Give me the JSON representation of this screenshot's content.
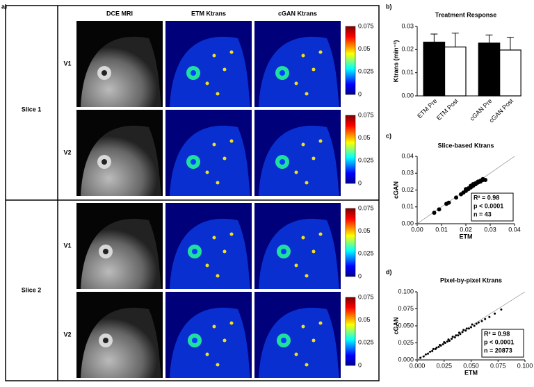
{
  "panel_a": {
    "label": "a)",
    "columns": [
      "DCE MRI",
      "ETM Ktrans",
      "cGAN Ktrans"
    ],
    "rows": [
      {
        "slice": "Slice 1",
        "visits": [
          "V1",
          "V2"
        ]
      },
      {
        "slice": "Slice 2",
        "visits": [
          "V1",
          "V2"
        ]
      }
    ],
    "colorbar_ticks": [
      0.075,
      0.05,
      0.025,
      0
    ]
  },
  "chart_data": [
    {
      "type": "bar",
      "panel_label": "b)",
      "title": "Treatment Response",
      "y_label": "Ktrans (min⁻¹)",
      "categories": [
        "ETM Pre",
        "ETM Post",
        "cGAN Pre",
        "cGAN Post"
      ],
      "values": [
        0.0232,
        0.0211,
        0.0228,
        0.0198
      ],
      "errors": [
        0.0035,
        0.006,
        0.0035,
        0.0055
      ],
      "colors": [
        "#000000",
        "#ffffff",
        "#000000",
        "#ffffff"
      ],
      "ylim": [
        0,
        0.03
      ],
      "yticks": [
        {
          "value": 0,
          "label": "0.00"
        },
        {
          "value": 0.01,
          "label": "0.01"
        },
        {
          "value": 0.02,
          "label": "0.02"
        },
        {
          "value": 0.03,
          "label": "0.03"
        }
      ]
    },
    {
      "type": "scatter",
      "panel_label": "c)",
      "title": "Slice-based Ktrans",
      "x_label": "ETM",
      "y_label": "cGAN",
      "x": [
        0.007,
        0.009,
        0.012,
        0.013,
        0.016,
        0.018,
        0.019,
        0.02,
        0.02,
        0.021,
        0.021,
        0.022,
        0.022,
        0.022,
        0.023,
        0.023,
        0.023,
        0.024,
        0.024,
        0.024,
        0.025,
        0.025,
        0.025,
        0.026,
        0.026,
        0.027,
        0.027,
        0.028
      ],
      "values": [
        0.0065,
        0.0085,
        0.0118,
        0.0125,
        0.0155,
        0.0175,
        0.0185,
        0.0195,
        0.0205,
        0.0205,
        0.021,
        0.0215,
        0.022,
        0.0225,
        0.0225,
        0.023,
        0.0235,
        0.0235,
        0.024,
        0.0235,
        0.0245,
        0.025,
        0.0245,
        0.0255,
        0.025,
        0.026,
        0.0265,
        0.026
      ],
      "color": "#000000",
      "marker_size": 3,
      "xlim": [
        0,
        0.04
      ],
      "ylim": [
        0,
        0.04
      ],
      "xticks": [
        {
          "value": 0,
          "label": "0.00"
        },
        {
          "value": 0.01,
          "label": "0.01"
        },
        {
          "value": 0.02,
          "label": "0.02"
        },
        {
          "value": 0.03,
          "label": "0.03"
        },
        {
          "value": 0.04,
          "label": "0.04"
        }
      ],
      "yticks": [
        {
          "value": 0,
          "label": "0.00"
        },
        {
          "value": 0.01,
          "label": "0.01"
        },
        {
          "value": 0.02,
          "label": "0.02"
        },
        {
          "value": 0.03,
          "label": "0.03"
        },
        {
          "value": 0.04,
          "label": "0.04"
        }
      ],
      "annotations": [
        "R² = 0.98",
        "p < 0.0001",
        "n = 43"
      ]
    },
    {
      "type": "scatter",
      "panel_label": "d)",
      "title": "Pixel-by-pixel Ktrans",
      "x_label": "ETM",
      "y_label": "cGAN",
      "x": [
        0.003,
        0.006,
        0.008,
        0.01,
        0.012,
        0.014,
        0.015,
        0.017,
        0.018,
        0.02,
        0.021,
        0.022,
        0.024,
        0.025,
        0.026,
        0.028,
        0.029,
        0.03,
        0.032,
        0.033,
        0.035,
        0.036,
        0.038,
        0.039,
        0.04,
        0.042,
        0.043,
        0.045,
        0.046,
        0.048,
        0.05,
        0.051,
        0.053,
        0.055,
        0.057,
        0.06,
        0.063,
        0.067,
        0.072,
        0.078
      ],
      "values": [
        0.003,
        0.005,
        0.008,
        0.009,
        0.012,
        0.013,
        0.016,
        0.016,
        0.018,
        0.019,
        0.022,
        0.021,
        0.023,
        0.026,
        0.025,
        0.027,
        0.03,
        0.028,
        0.031,
        0.034,
        0.033,
        0.036,
        0.036,
        0.04,
        0.038,
        0.041,
        0.044,
        0.043,
        0.046,
        0.046,
        0.048,
        0.052,
        0.05,
        0.053,
        0.055,
        0.057,
        0.06,
        0.063,
        0.068,
        0.074
      ],
      "color": "#000000",
      "marker_size": 1.5,
      "xlim": [
        0,
        0.1
      ],
      "ylim": [
        0,
        0.1
      ],
      "xticks": [
        {
          "value": 0,
          "label": "0.000"
        },
        0.025,
        {
          "value": 0.05,
          "label": "0.050"
        },
        0.075,
        {
          "value": 0.1,
          "label": "0.100"
        }
      ],
      "yticks": [
        {
          "value": 0,
          "label": "0.000"
        },
        0.025,
        {
          "value": 0.05,
          "label": "0.050"
        },
        0.075,
        {
          "value": 0.1,
          "label": "0.100"
        }
      ],
      "annotations": [
        "R² = 0.98",
        "p < 0.0001",
        "n = 20873"
      ]
    }
  ]
}
